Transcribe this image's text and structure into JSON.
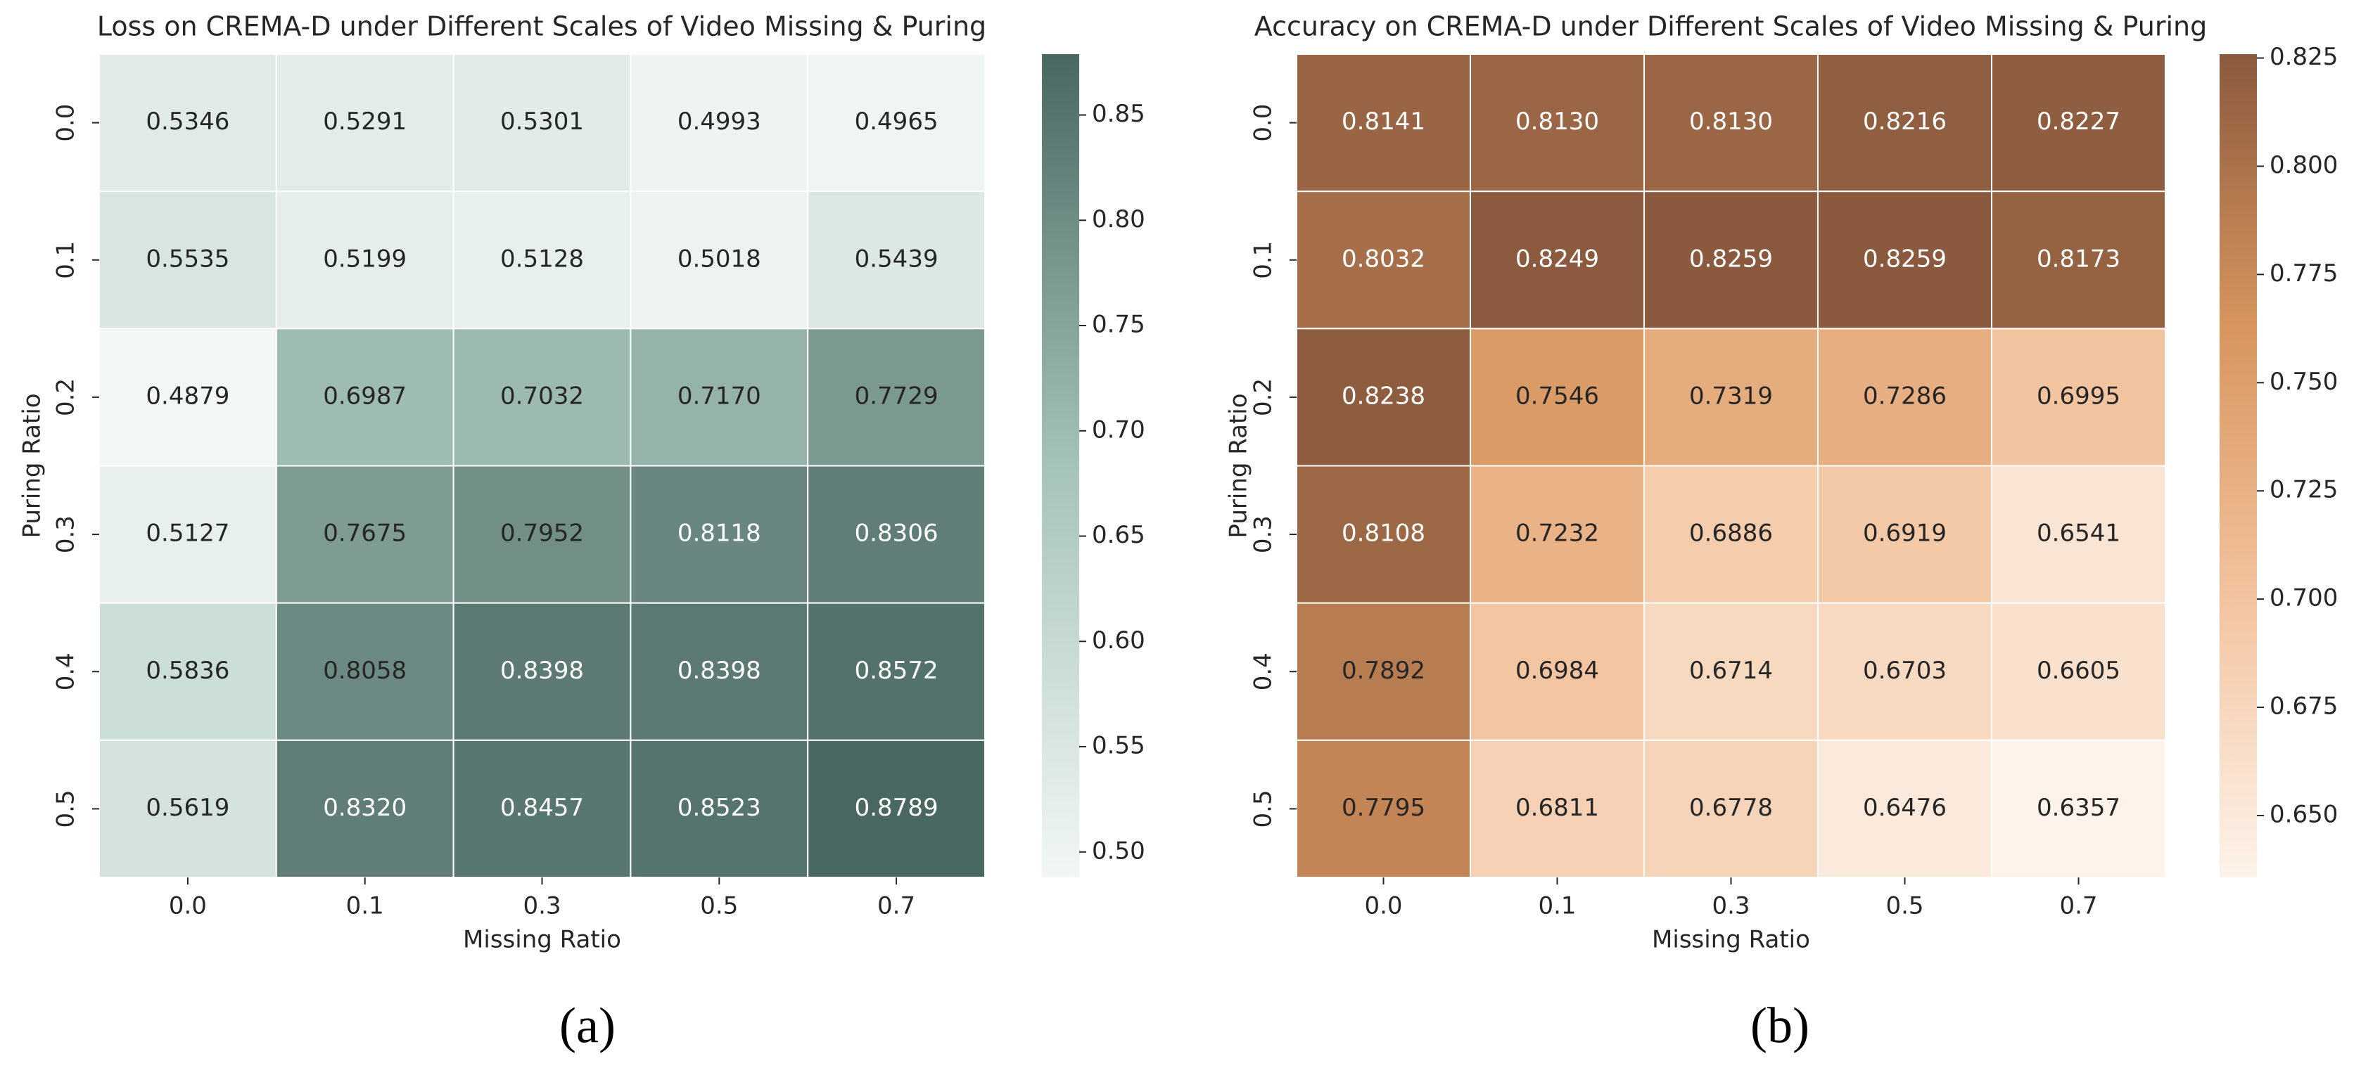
{
  "chart_data": [
    {
      "type": "heatmap",
      "title": "Loss on CREMA-D under Different Scales of Video Missing & Puring",
      "x_label": "Missing Ratio",
      "y_label": "Puring Ratio",
      "caption": "(a)",
      "x_categories": [
        "0.0",
        "0.1",
        "0.3",
        "0.5",
        "0.7"
      ],
      "y_categories": [
        "0.0",
        "0.1",
        "0.2",
        "0.3",
        "0.4",
        "0.5"
      ],
      "values": [
        [
          0.5346,
          0.5291,
          0.5301,
          0.4993,
          0.4965
        ],
        [
          0.5535,
          0.5199,
          0.5128,
          0.5018,
          0.5439
        ],
        [
          0.4879,
          0.6987,
          0.7032,
          0.717,
          0.7729
        ],
        [
          0.5127,
          0.7675,
          0.7952,
          0.8118,
          0.8306
        ],
        [
          0.5836,
          0.8058,
          0.8398,
          0.8398,
          0.8572
        ],
        [
          0.5619,
          0.832,
          0.8457,
          0.8523,
          0.8789
        ]
      ],
      "value_labels": [
        [
          "0.5346",
          "0.5291",
          "0.5301",
          "0.4993",
          "0.4965"
        ],
        [
          "0.5535",
          "0.5199",
          "0.5128",
          "0.5018",
          "0.5439"
        ],
        [
          "0.4879",
          "0.6987",
          "0.7032",
          "0.7170",
          "0.7729"
        ],
        [
          "0.5127",
          "0.7675",
          "0.7952",
          "0.8118",
          "0.8306"
        ],
        [
          "0.5836",
          "0.8058",
          "0.8398",
          "0.8398",
          "0.8572"
        ],
        [
          "0.5619",
          "0.8320",
          "0.8457",
          "0.8523",
          "0.8789"
        ]
      ],
      "zlim": [
        0.4879,
        0.8789
      ],
      "zticks": [
        {
          "value": 0.5,
          "label": "0.50"
        },
        0.55,
        {
          "value": 0.6,
          "label": "0.60"
        },
        0.65,
        {
          "value": 0.7,
          "label": "0.70"
        },
        0.75,
        {
          "value": 0.8,
          "label": "0.80"
        },
        0.85
      ],
      "colors": [
        "#f2f7f5",
        "#a5c3b9",
        "#4a6862"
      ]
    },
    {
      "type": "heatmap",
      "title": "Accuracy on CREMA-D under Different Scales of Video Missing & Puring",
      "x_label": "Missing Ratio",
      "y_label": "Puring Ratio",
      "caption": "(b)",
      "x_categories": [
        "0.0",
        "0.1",
        "0.3",
        "0.5",
        "0.7"
      ],
      "y_categories": [
        "0.0",
        "0.1",
        "0.2",
        "0.3",
        "0.4",
        "0.5"
      ],
      "values": [
        [
          0.8141,
          0.813,
          0.813,
          0.8216,
          0.8227
        ],
        [
          0.8032,
          0.8249,
          0.8259,
          0.8259,
          0.8173
        ],
        [
          0.8238,
          0.7546,
          0.7319,
          0.7286,
          0.6995
        ],
        [
          0.8108,
          0.7232,
          0.6886,
          0.6919,
          0.6541
        ],
        [
          0.7892,
          0.6984,
          0.6714,
          0.6703,
          0.6605
        ],
        [
          0.7795,
          0.6811,
          0.6778,
          0.6476,
          0.6357
        ]
      ],
      "value_labels": [
        [
          "0.8141",
          "0.8130",
          "0.8130",
          "0.8216",
          "0.8227"
        ],
        [
          "0.8032",
          "0.8249",
          "0.8259",
          "0.8259",
          "0.8173"
        ],
        [
          "0.8238",
          "0.7546",
          "0.7319",
          "0.7286",
          "0.6995"
        ],
        [
          "0.8108",
          "0.7232",
          "0.6886",
          "0.6919",
          "0.6541"
        ],
        [
          "0.7892",
          "0.6984",
          "0.6714",
          "0.6703",
          "0.6605"
        ],
        [
          "0.7795",
          "0.6811",
          "0.6778",
          "0.6476",
          "0.6357"
        ]
      ],
      "zlim": [
        0.6357,
        0.8259
      ],
      "zticks": [
        {
          "value": 0.65,
          "label": "0.650"
        },
        0.675,
        {
          "value": 0.7,
          "label": "0.700"
        },
        0.725,
        {
          "value": 0.75,
          "label": "0.750"
        },
        0.775,
        {
          "value": 0.8,
          "label": "0.800"
        },
        0.825
      ],
      "colors": [
        "#fdf3ea",
        "#f3c4a0",
        "#d8955e",
        "#8b5a3e"
      ]
    }
  ]
}
